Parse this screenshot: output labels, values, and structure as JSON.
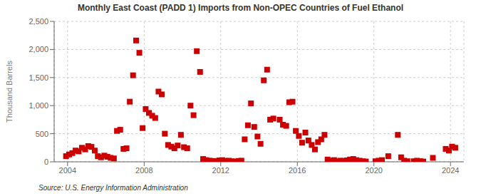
{
  "chart_data": {
    "type": "scatter",
    "title": "Monthly East Coast (PADD 1) Imports from Non-OPEC Countries of Fuel Ethanol",
    "ylabel": "Thousand Barrels",
    "source": "Source: U.S. Energy Information Administration",
    "color": "#cc0000",
    "marker": "square",
    "grid": true,
    "xlim": [
      2003.3,
      2024.7
    ],
    "xticks": [
      2004,
      2008,
      2012,
      2016,
      2020,
      2024
    ],
    "ylim": [
      0,
      2500
    ],
    "yticks": [
      0,
      500,
      {
        "value": 1000,
        "label": "1,000"
      },
      {
        "value": 1500,
        "label": "1,500"
      },
      {
        "value": 2000,
        "label": "2,000"
      },
      {
        "value": 2500,
        "label": "2,500"
      }
    ],
    "x": [
      2003.92,
      2004.08,
      2004.25,
      2004.42,
      2004.58,
      2004.75,
      2004.92,
      2005.08,
      2005.25,
      2005.42,
      2005.58,
      2005.75,
      2005.92,
      2006.08,
      2006.25,
      2006.42,
      2006.58,
      2006.75,
      2006.92,
      2007.08,
      2007.25,
      2007.42,
      2007.58,
      2007.75,
      2007.92,
      2008.08,
      2008.25,
      2008.42,
      2008.58,
      2008.75,
      2008.92,
      2009.08,
      2009.25,
      2009.42,
      2009.58,
      2009.75,
      2009.92,
      2010.08,
      2010.25,
      2010.42,
      2010.58,
      2010.75,
      2010.92,
      2011.08,
      2011.25,
      2011.42,
      2011.58,
      2011.75,
      2011.92,
      2012.08,
      2012.25,
      2012.42,
      2012.58,
      2012.75,
      2012.92,
      2013.08,
      2013.25,
      2013.42,
      2013.58,
      2013.75,
      2013.92,
      2014.08,
      2014.25,
      2014.42,
      2014.58,
      2014.75,
      2015.08,
      2015.25,
      2015.42,
      2015.58,
      2015.75,
      2015.92,
      2016.08,
      2016.25,
      2016.42,
      2016.58,
      2016.75,
      2016.92,
      2017.08,
      2017.25,
      2017.42,
      2017.58,
      2017.75,
      2017.92,
      2018.08,
      2018.25,
      2018.42,
      2018.58,
      2018.75,
      2018.92,
      2019.08,
      2019.25,
      2019.42,
      2019.58,
      2020.08,
      2020.25,
      2020.42,
      2020.75,
      2021.25,
      2021.42,
      2021.58,
      2021.75,
      2022.08,
      2022.25,
      2022.42,
      2022.58,
      2023.08,
      2023.75,
      2023.92,
      2024.08,
      2024.25
    ],
    "values": [
      100,
      130,
      155,
      200,
      185,
      250,
      220,
      280,
      265,
      200,
      100,
      80,
      110,
      90,
      70,
      60,
      550,
      570,
      230,
      240,
      1070,
      1540,
      2160,
      1940,
      600,
      940,
      870,
      820,
      780,
      1250,
      1200,
      500,
      300,
      270,
      240,
      290,
      480,
      260,
      240,
      1000,
      830,
      1970,
      1600,
      50,
      30,
      20,
      15,
      10,
      25,
      30,
      15,
      20,
      10,
      5,
      15,
      20,
      400,
      650,
      1040,
      620,
      450,
      320,
      1450,
      1640,
      750,
      770,
      750,
      660,
      640,
      1060,
      1070,
      550,
      460,
      340,
      520,
      380,
      300,
      220,
      350,
      400,
      480,
      40,
      20,
      30,
      10,
      20,
      15,
      25,
      40,
      50,
      30,
      20,
      10,
      5,
      10,
      20,
      30,
      100,
      480,
      80,
      20,
      10,
      10,
      20,
      10,
      5,
      70,
      230,
      200,
      270,
      250
    ]
  }
}
